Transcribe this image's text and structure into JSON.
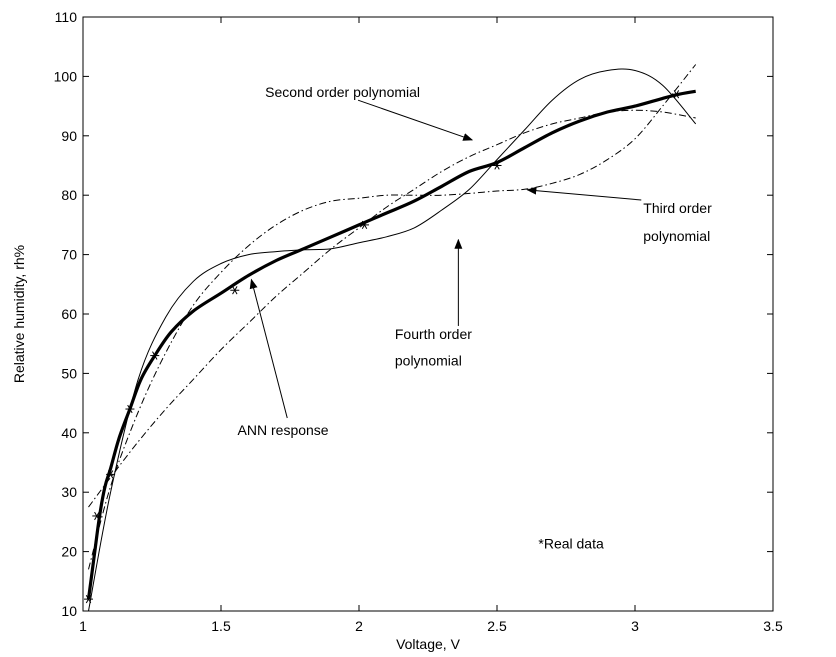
{
  "chart_data": {
    "type": "line",
    "xlabel": "Voltage, V",
    "ylabel": "Relative humidity, rh%",
    "xlim": [
      1,
      3.5
    ],
    "ylim": [
      10,
      110
    ],
    "xticks": [
      1,
      1.5,
      2,
      2.5,
      3,
      3.5
    ],
    "xtick_labels": [
      "1",
      "1.5",
      "2",
      "2.5",
      "3",
      "3.5"
    ],
    "yticks": [
      10,
      20,
      30,
      40,
      50,
      60,
      70,
      80,
      90,
      100,
      110
    ],
    "ytick_labels": [
      "10",
      "20",
      "30",
      "40",
      "50",
      "60",
      "70",
      "80",
      "90",
      "100",
      "110"
    ],
    "grid": false,
    "series": [
      {
        "name": "ANN response",
        "style": "solid-thick",
        "color": "#000000",
        "x": [
          1.02,
          1.04,
          1.06,
          1.08,
          1.1,
          1.13,
          1.17,
          1.21,
          1.26,
          1.32,
          1.4,
          1.5,
          1.6,
          1.7,
          1.8,
          1.9,
          2.0,
          2.1,
          2.2,
          2.3,
          2.4,
          2.5,
          2.6,
          2.7,
          2.8,
          2.9,
          3.0,
          3.1,
          3.16,
          3.22
        ],
        "y": [
          12,
          19,
          26,
          31,
          34,
          39,
          44,
          49,
          53,
          57,
          60.5,
          63.5,
          66.5,
          69,
          71,
          73,
          75,
          77,
          79,
          81.5,
          84,
          85.5,
          88,
          90.5,
          92.5,
          94,
          95,
          96.3,
          97,
          97.5
        ]
      },
      {
        "name": "Second order polynomial",
        "style": "dash-dot",
        "color": "#000000",
        "x": [
          1.02,
          1.1,
          1.2,
          1.3,
          1.4,
          1.5,
          1.6,
          1.7,
          1.8,
          1.9,
          2.0,
          2.1,
          2.2,
          2.3,
          2.4,
          2.5,
          2.6,
          2.7,
          2.8,
          2.9,
          3.0,
          3.1,
          3.22
        ],
        "y": [
          27.5,
          32.5,
          38.5,
          44,
          49,
          54,
          58.5,
          63,
          67,
          71,
          74.5,
          78,
          81,
          84,
          86.5,
          88.5,
          90.5,
          92,
          93,
          94,
          94.3,
          94,
          93
        ]
      },
      {
        "name": "Third order polynomial",
        "style": "dash-dot",
        "color": "#000000",
        "x": [
          1.02,
          1.1,
          1.2,
          1.3,
          1.4,
          1.5,
          1.6,
          1.7,
          1.8,
          1.9,
          2.0,
          2.1,
          2.2,
          2.3,
          2.4,
          2.5,
          2.6,
          2.7,
          2.8,
          2.9,
          3.0,
          3.1,
          3.22
        ],
        "y": [
          17,
          31,
          43.5,
          53.5,
          61.5,
          67,
          71.5,
          75,
          77.5,
          79,
          79.5,
          80,
          80,
          80,
          80.3,
          80.7,
          81,
          82,
          83.5,
          86,
          89.5,
          95,
          102
        ]
      },
      {
        "name": "Fourth order polynomial",
        "style": "solid-thin",
        "color": "#000000",
        "x": [
          1.02,
          1.1,
          1.2,
          1.3,
          1.4,
          1.5,
          1.6,
          1.7,
          1.8,
          1.9,
          2.0,
          2.1,
          2.2,
          2.3,
          2.4,
          2.5,
          2.6,
          2.7,
          2.8,
          2.9,
          3.0,
          3.1,
          3.22
        ],
        "y": [
          10,
          30,
          49,
          59.5,
          65.5,
          68.5,
          70,
          70.5,
          70.8,
          71,
          72,
          73,
          74.5,
          77.5,
          81,
          86,
          91,
          96,
          99.5,
          101,
          101,
          98.5,
          92
        ]
      }
    ],
    "real_data": {
      "name": "*Real data",
      "marker": "*",
      "x": [
        1.02,
        1.05,
        1.1,
        1.17,
        1.26,
        1.55,
        2.02,
        2.5,
        3.15
      ],
      "y": [
        12,
        26,
        33,
        44,
        53,
        64,
        75,
        85,
        97
      ]
    },
    "annotations": [
      {
        "text": "Second order polynomial",
        "x": 1.66,
        "y": 96.5,
        "arrow_to": [
          2.41,
          89.3
        ],
        "align": "start"
      },
      {
        "text": "Third order",
        "x": 3.03,
        "y": 77,
        "arrow_to": [
          2.61,
          80.9
        ],
        "align": "start"
      },
      {
        "text": "polynomial",
        "x": 3.03,
        "y": 72.3,
        "align": "start"
      },
      {
        "text": "Fourth order",
        "x": 2.13,
        "y": 55.8,
        "arrow_to": [
          2.36,
          72.5
        ],
        "align": "start"
      },
      {
        "text": "polynomial",
        "x": 2.13,
        "y": 51.3,
        "align": "start"
      },
      {
        "text": "ANN response",
        "x": 1.56,
        "y": 39.6,
        "arrow_to": [
          1.61,
          65.8
        ],
        "arrow_from": [
          1.74,
          42.5
        ],
        "align": "start"
      },
      {
        "text": "*Real data",
        "x": 2.65,
        "y": 20.5,
        "align": "start"
      }
    ]
  }
}
